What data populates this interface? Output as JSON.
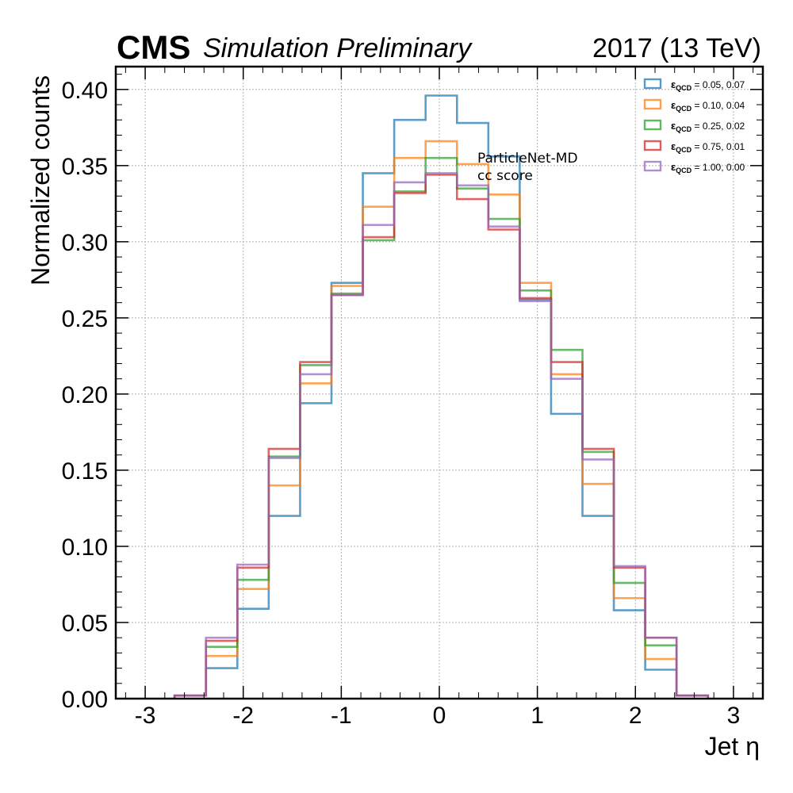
{
  "header": {
    "experiment": "CMS",
    "status": "Simulation Preliminary",
    "lumi_label": "2017 (13 TeV)"
  },
  "chart_data": {
    "type": "histogram-step",
    "xlabel": "Jet η",
    "ylabel": "Normalized counts",
    "xlim": [
      -3.3,
      3.3
    ],
    "ylim": [
      0,
      0.415
    ],
    "grid": true,
    "legend_position": "top-right",
    "annotation": [
      "ParticleNet-MD",
      "cc score"
    ],
    "x_ticks": [
      -3,
      -2,
      -1,
      0,
      1,
      2,
      3
    ],
    "x_tick_labels": [
      "-3",
      "-2",
      "-1",
      "0",
      "1",
      "2",
      "3"
    ],
    "y_ticks": [
      0.0,
      0.05,
      0.1,
      0.15,
      0.2,
      0.25,
      0.3,
      0.35,
      0.4
    ],
    "y_tick_labels": [
      "0.00",
      "0.05",
      "0.10",
      "0.15",
      "0.20",
      "0.25",
      "0.30",
      "0.35",
      "0.40"
    ],
    "bin_edges": [
      -2.7,
      -2.38,
      -2.06,
      -1.74,
      -1.42,
      -1.1,
      -0.78,
      -0.46,
      -0.14,
      0.18,
      0.5,
      0.82,
      1.14,
      1.46,
      1.78,
      2.1,
      2.42,
      2.74
    ],
    "legend_symbol": "ε",
    "legend_subscript": "QCD",
    "series": [
      {
        "name": "= 0.05, 0.07",
        "color": "#1f77b4",
        "values": [
          0.002,
          0.02,
          0.059,
          0.12,
          0.194,
          0.273,
          0.345,
          0.38,
          0.396,
          0.378,
          0.356,
          0.262,
          0.187,
          0.12,
          0.058,
          0.019,
          0.002
        ]
      },
      {
        "name": "= 0.10, 0.04",
        "color": "#ff7f0e",
        "values": [
          0.002,
          0.028,
          0.072,
          0.14,
          0.207,
          0.271,
          0.323,
          0.355,
          0.366,
          0.351,
          0.331,
          0.273,
          0.213,
          0.141,
          0.066,
          0.026,
          0.002
        ]
      },
      {
        "name": "= 0.25, 0.02",
        "color": "#2ca02c",
        "values": [
          0.002,
          0.034,
          0.078,
          0.159,
          0.219,
          0.266,
          0.301,
          0.333,
          0.355,
          0.335,
          0.315,
          0.268,
          0.229,
          0.162,
          0.076,
          0.035,
          0.002
        ]
      },
      {
        "name": "= 0.75, 0.01",
        "color": "#d62728",
        "values": [
          0.002,
          0.038,
          0.086,
          0.164,
          0.221,
          0.265,
          0.303,
          0.332,
          0.344,
          0.328,
          0.308,
          0.263,
          0.221,
          0.164,
          0.086,
          0.04,
          0.002
        ]
      },
      {
        "name": "= 1.00, 0.00",
        "color": "#9467bd",
        "values": [
          0.002,
          0.04,
          0.088,
          0.158,
          0.213,
          0.265,
          0.311,
          0.339,
          0.345,
          0.337,
          0.31,
          0.261,
          0.21,
          0.157,
          0.087,
          0.04,
          0.002
        ]
      }
    ]
  }
}
